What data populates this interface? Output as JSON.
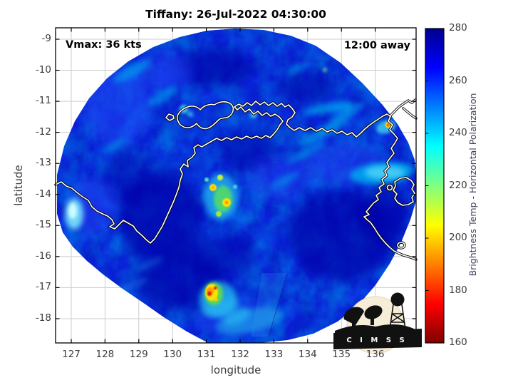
{
  "title": "Tiffany: 26-Jul-2022 04:30:00",
  "annotations": {
    "vmax": "Vmax: 36 kts",
    "time_offset": "12:00 away"
  },
  "axes": {
    "xlabel": "longitude",
    "ylabel": "latitude",
    "xticks": [
      127,
      128,
      129,
      130,
      131,
      132,
      133,
      134,
      135,
      136
    ],
    "yticks": [
      -9,
      -10,
      -11,
      -12,
      -13,
      -14,
      -15,
      -16,
      -17,
      -18
    ]
  },
  "colorbar": {
    "label": "Brightness Temp - Horizontal Polarization",
    "ticks": [
      280,
      260,
      240,
      220,
      200,
      180,
      160
    ]
  },
  "logo": {
    "text": "C I M S S"
  },
  "chart_data": {
    "type": "heatmap",
    "title": "Tiffany: 26-Jul-2022 04:30:00",
    "xlabel": "longitude",
    "ylabel": "latitude",
    "xlim": [
      126.5,
      137.2
    ],
    "ylim": [
      -18.8,
      -8.6
    ],
    "xticks": [
      127,
      128,
      129,
      130,
      131,
      132,
      133,
      134,
      135,
      136
    ],
    "yticks": [
      -9,
      -10,
      -11,
      -12,
      -13,
      -14,
      -15,
      -16,
      -17,
      -18
    ],
    "grid": true,
    "colorbar": {
      "label": "Brightness Temp - Horizontal Polarization",
      "range": [
        160,
        280
      ],
      "ticks": [
        280,
        260,
        240,
        220,
        200,
        180,
        160
      ],
      "colormap": "reversed jet: 280=dark navy, 265=blue, 235=cyan, 205=yellow, 175=red, 160=dark red"
    },
    "storm": {
      "name": "Tiffany",
      "timestamp": "26-Jul-2022 04:30:00",
      "vmax_kts": 36,
      "observation_offset": "12:00 away"
    },
    "swath": {
      "shape": "quasi-circular satellite swath, white outside",
      "center_lon": 131.9,
      "center_lat": -13.8,
      "radius_deg": 5.3,
      "background_tb": "260-280 (deep blue) over most of disc"
    },
    "hot_spots": [
      {
        "lon": 131.2,
        "lat": -14.25,
        "tb": 200,
        "note": "yellow convective cell, central cluster"
      },
      {
        "lon": 131.2,
        "lat": -13.8,
        "tb": 205,
        "note": "yellow cell north of cluster"
      },
      {
        "lon": 131.1,
        "lat": -13.5,
        "tb": 215,
        "note": "green-yellow fleck"
      },
      {
        "lon": 131.0,
        "lat": -17.2,
        "tb": 170,
        "note": "strongest convection, red-orange core with cyan halo"
      },
      {
        "lon": 136.4,
        "lat": -11.75,
        "tb": 185,
        "note": "orange cell near Gove Peninsula coast"
      }
    ],
    "features": [
      "cyan streaks (~240-250) NE-SW oriented in upper-right quadrant",
      "bright cyan patch at right edge near (136.2, -13.3)",
      "cyan glow hugging west coast near (127.1, -14.6)",
      "teal region along bottom of swath near (131.5, -17.8)",
      "scan seam edge near lon 132.1 between lat -16.8 and -18.7",
      "white coastline overlay: Tiwi Islands, Top End of Australia, Gove Peninsula, Groote Eylandt, Gulf of Carpentaria coast"
    ]
  }
}
